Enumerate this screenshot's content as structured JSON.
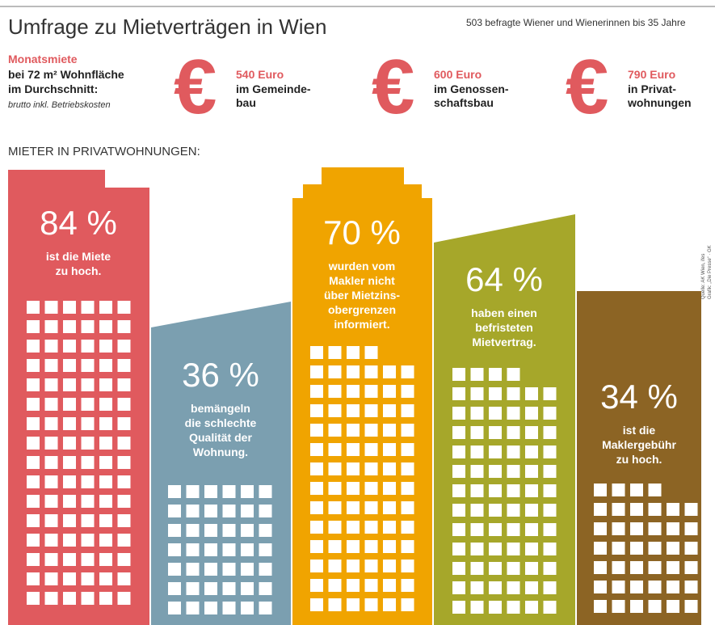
{
  "header": {
    "title": "Umfrage zu Mietverträgen in Wien",
    "subtitle": "503 befragte Wiener und Wienerinnen bis 35 Jahre"
  },
  "rent": {
    "label": "Monatsmiete",
    "lines": [
      "bei 72 m² Wohnfläche",
      "im Durchschnitt:"
    ],
    "note": "brutto inkl. Betriebskosten",
    "items": [
      {
        "symbol": "€",
        "amount": "540 Euro",
        "lines": [
          "im Gemeinde-",
          "bau"
        ]
      },
      {
        "symbol": "€",
        "amount": "600 Euro",
        "lines": [
          "im Genossen-",
          "schaftsbau"
        ]
      },
      {
        "symbol": "€",
        "amount": "790 Euro",
        "lines": [
          "in Privat-",
          "wohnungen"
        ]
      }
    ]
  },
  "section_title": "MIETER IN PRIVATWOHNUNGEN:",
  "buildings": [
    {
      "percent": "84 %",
      "lines": [
        "ist die Miete",
        "zu hoch."
      ]
    },
    {
      "percent": "36 %",
      "lines": [
        "bemängeln",
        "die schlechte",
        "Qualität der",
        "Wohnung."
      ]
    },
    {
      "percent": "70 %",
      "lines": [
        "wurden vom",
        "Makler nicht",
        "über Mietzins-",
        "obergrenzen",
        "informiert."
      ]
    },
    {
      "percent": "64 %",
      "lines": [
        "haben einen",
        "befristeten",
        "Mietvertrag."
      ]
    },
    {
      "percent": "34 %",
      "lines": [
        "ist die",
        "Maklergebühr",
        "zu hoch."
      ]
    }
  ],
  "source": [
    "Quelle: AK Wien, ifes",
    "Grafik: „Die Presse“ · GK"
  ]
}
